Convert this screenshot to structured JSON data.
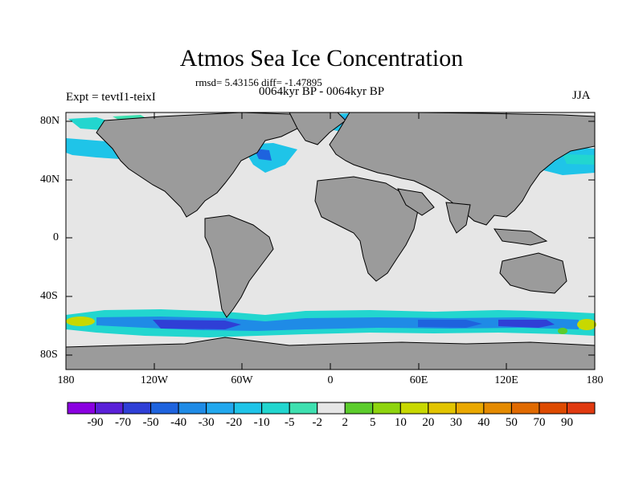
{
  "title": "Atmos Sea Ice Concentration",
  "stats_text": "rmsd= 5.43156 diff= -1.47895",
  "period_text": "0064kyr BP - 0064kyr BP",
  "experiment_text": "Expt = tevtI1-teixI",
  "season_text": "JJA",
  "lat_labels": [
    "80N",
    "40N",
    "0",
    "40S",
    "80S"
  ],
  "lon_labels": [
    "180",
    "120W",
    "60W",
    "0",
    "60E",
    "120E",
    "180"
  ],
  "colorbar": {
    "labels": [
      "-90",
      "-70",
      "-50",
      "-40",
      "-30",
      "-20",
      "-10",
      "-5",
      "-2",
      "2",
      "5",
      "10",
      "20",
      "30",
      "40",
      "50",
      "70",
      "90"
    ],
    "colors": [
      "#8a00e0",
      "#5a20d8",
      "#2f3fd6",
      "#1e63de",
      "#1f8be6",
      "#22a8ee",
      "#1fc4e8",
      "#22d6cf",
      "#3ee0b0",
      "#e6e6e6",
      "#5ccc2c",
      "#8ed40e",
      "#c8d800",
      "#e2c400",
      "#eaa800",
      "#e48a00",
      "#e06a00",
      "#dd4a00",
      "#e03a10"
    ]
  },
  "colors": {
    "land": "#9b9b9b",
    "ocean": "#e6e6e6",
    "coast": "#000000"
  }
}
